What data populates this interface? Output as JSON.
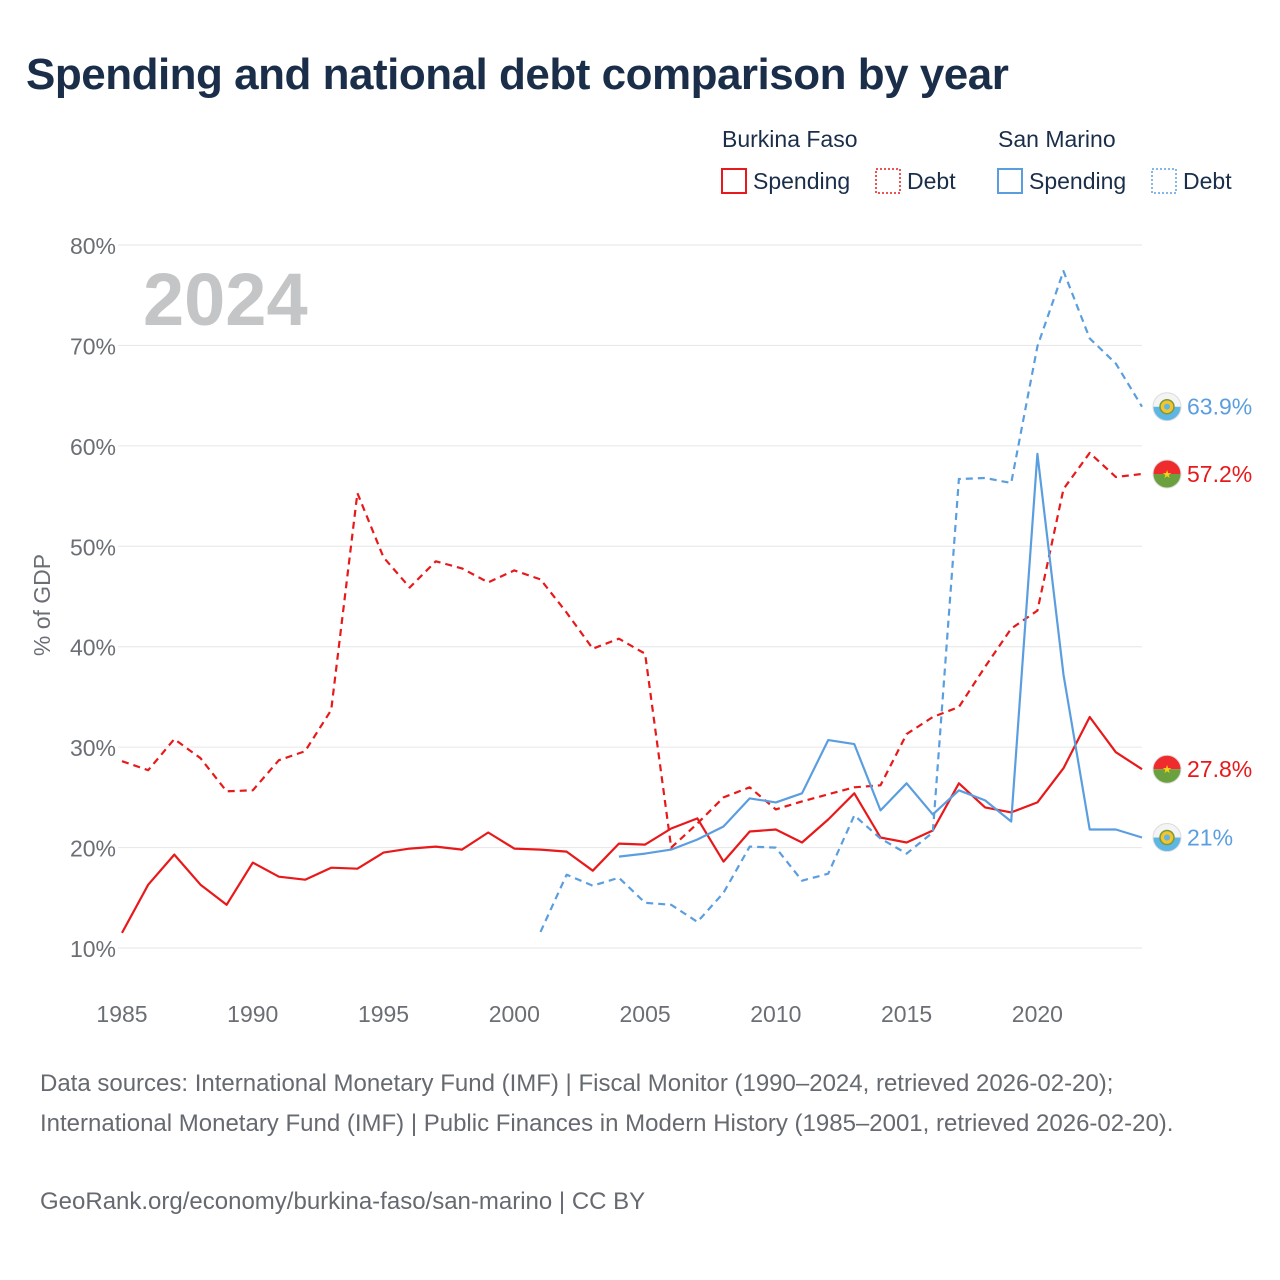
{
  "title": "Spending and national debt comparison by year",
  "year_watermark": "2024",
  "legend": {
    "groups": [
      {
        "country": "Burkina Faso",
        "color": "#e8191a",
        "items": [
          "Spending",
          "Debt"
        ]
      },
      {
        "country": "San Marino",
        "color": "#5b9ee0",
        "items": [
          "Spending",
          "Debt"
        ]
      }
    ]
  },
  "footer": {
    "sources": "Data sources: International Monetary Fund (IMF) | Fiscal Monitor (1990–2024, retrieved 2026-02-20); International Monetary Fund (IMF) | Public Finances in Modern History (1985–2001, retrieved 2026-02-20).",
    "credit": "GeoRank.org/economy/burkina-faso/san-marino | CC BY"
  },
  "chart_data": {
    "type": "line",
    "ylabel": "% of GDP",
    "xlabel": "",
    "xlim": [
      1985,
      2024
    ],
    "ylim": [
      10,
      80
    ],
    "x_ticks": [
      1985,
      1990,
      1995,
      2000,
      2005,
      2010,
      2015,
      2020
    ],
    "y_ticks": [
      10,
      20,
      30,
      40,
      50,
      60,
      70,
      80
    ],
    "y_tick_labels": [
      "10%",
      "20%",
      "30%",
      "40%",
      "50%",
      "60%",
      "70%",
      "80%"
    ],
    "series": [
      {
        "name": "Burkina Faso Spending",
        "country": "Burkina Faso",
        "metric": "Spending",
        "style": "solid",
        "color": "#e8191a",
        "end_label": "27.8%",
        "flag": "burkina-faso",
        "x": [
          1985,
          1986,
          1987,
          1988,
          1989,
          1990,
          1991,
          1992,
          1993,
          1994,
          1995,
          1996,
          1997,
          1998,
          1999,
          2000,
          2001,
          2002,
          2003,
          2004,
          2005,
          2006,
          2007,
          2008,
          2009,
          2010,
          2011,
          2012,
          2013,
          2014,
          2015,
          2016,
          2017,
          2018,
          2019,
          2020,
          2021,
          2022,
          2023,
          2024
        ],
        "values": [
          11.5,
          16.3,
          19.3,
          16.3,
          14.3,
          18.5,
          17.1,
          16.8,
          18.0,
          17.9,
          19.5,
          19.9,
          20.1,
          19.8,
          21.5,
          19.9,
          19.8,
          19.6,
          17.7,
          20.4,
          20.3,
          21.9,
          22.9,
          18.6,
          21.6,
          21.8,
          20.5,
          22.8,
          25.4,
          21.0,
          20.5,
          21.7,
          26.4,
          24.0,
          23.5,
          24.5,
          27.9,
          33.0,
          29.5,
          27.8
        ]
      },
      {
        "name": "Burkina Faso Debt",
        "country": "Burkina Faso",
        "metric": "Debt",
        "style": "dashed",
        "color": "#e8191a",
        "end_label": "57.2%",
        "flag": "burkina-faso",
        "x": [
          1985,
          1986,
          1987,
          1988,
          1989,
          1990,
          1991,
          1992,
          1993,
          1994,
          1995,
          1996,
          1997,
          1998,
          1999,
          2000,
          2001,
          2002,
          2003,
          2004,
          2005,
          2006,
          2007,
          2008,
          2009,
          2010,
          2011,
          2012,
          2013,
          2014,
          2015,
          2016,
          2017,
          2018,
          2019,
          2020,
          2021,
          2022,
          2023,
          2024
        ],
        "values": [
          28.6,
          27.7,
          30.8,
          28.9,
          25.6,
          25.7,
          28.7,
          29.6,
          33.7,
          55.3,
          48.9,
          45.9,
          48.5,
          47.8,
          46.4,
          47.6,
          46.7,
          43.4,
          39.8,
          40.8,
          39.3,
          20.0,
          22.4,
          25.0,
          26.0,
          23.8,
          24.6,
          25.3,
          26.0,
          26.2,
          31.3,
          33.0,
          34.0,
          38.0,
          41.8,
          43.6,
          55.7,
          59.3,
          56.9,
          57.2
        ]
      },
      {
        "name": "San Marino Spending",
        "country": "San Marino",
        "metric": "Spending",
        "style": "solid",
        "color": "#5b9ee0",
        "end_label": "21%",
        "flag": "san-marino",
        "x": [
          2004,
          2005,
          2006,
          2007,
          2008,
          2009,
          2010,
          2011,
          2012,
          2013,
          2014,
          2015,
          2016,
          2017,
          2018,
          2019,
          2020,
          2021,
          2022,
          2023,
          2024
        ],
        "values": [
          19.1,
          19.4,
          19.8,
          20.8,
          22.1,
          24.9,
          24.5,
          25.4,
          30.7,
          30.3,
          23.7,
          26.4,
          23.3,
          25.7,
          24.7,
          22.6,
          59.2,
          37.2,
          21.8,
          21.8,
          21.0
        ]
      },
      {
        "name": "San Marino Debt",
        "country": "San Marino",
        "metric": "Debt",
        "style": "dashed",
        "color": "#5b9ee0",
        "end_label": "63.9%",
        "flag": "san-marino",
        "x": [
          2001,
          2002,
          2003,
          2004,
          2005,
          2006,
          2007,
          2008,
          2009,
          2010,
          2011,
          2012,
          2013,
          2014,
          2015,
          2016,
          2017,
          2018,
          2019,
          2020,
          2021,
          2022,
          2023,
          2024
        ],
        "values": [
          11.6,
          17.3,
          16.2,
          17.0,
          14.5,
          14.3,
          12.6,
          15.5,
          20.1,
          20.0,
          16.7,
          17.4,
          23.2,
          20.9,
          19.4,
          21.5,
          56.7,
          56.8,
          56.3,
          69.9,
          77.4,
          70.7,
          68.2,
          63.9
        ]
      }
    ]
  }
}
